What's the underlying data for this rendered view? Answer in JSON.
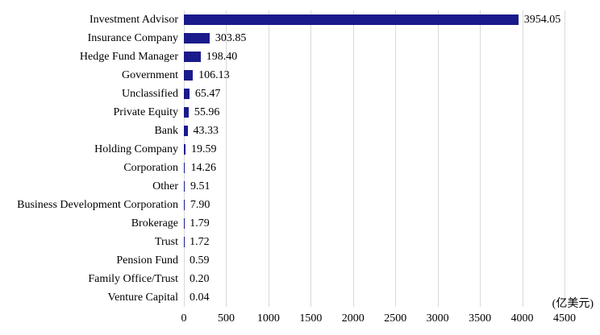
{
  "chart_data": {
    "type": "bar",
    "orientation": "horizontal",
    "title": "",
    "xlabel": "(亿美元)",
    "ylabel": "",
    "categories": [
      "Investment Advisor",
      "Insurance Company",
      "Hedge Fund Manager",
      "Government",
      "Unclassified",
      "Private Equity",
      "Bank",
      "Holding Company",
      "Corporation",
      "Other",
      "Business Development Corporation",
      "Brokerage",
      "Trust",
      "Pension Fund",
      "Family Office/Trust",
      "Venture Capital"
    ],
    "values": [
      3954.05,
      303.85,
      198.4,
      106.13,
      65.47,
      55.96,
      43.33,
      19.59,
      14.26,
      9.51,
      7.9,
      1.79,
      1.72,
      0.59,
      0.2,
      0.04
    ],
    "value_labels": [
      "3954.05",
      "303.85",
      "198.40",
      "106.13",
      "65.47",
      "55.96",
      "43.33",
      "19.59",
      "14.26",
      "9.51",
      "7.90",
      "1.79",
      "1.72",
      "0.59",
      "0.20",
      "0.04"
    ],
    "x_ticks": [
      0,
      500,
      1000,
      1500,
      2000,
      2500,
      3000,
      3500,
      4000,
      4500
    ],
    "x_tick_labels": [
      "0",
      "500",
      "1000",
      "1500",
      "2000",
      "2500",
      "3000",
      "3500",
      "4000",
      "4500"
    ],
    "xlim": [
      0,
      4500
    ],
    "grid": "vertical",
    "legend": "none",
    "bar_color": "#1a1a8c",
    "gridline_color": "#d9d9d9",
    "text_color": "#000000",
    "background_color": "#ffffff"
  }
}
